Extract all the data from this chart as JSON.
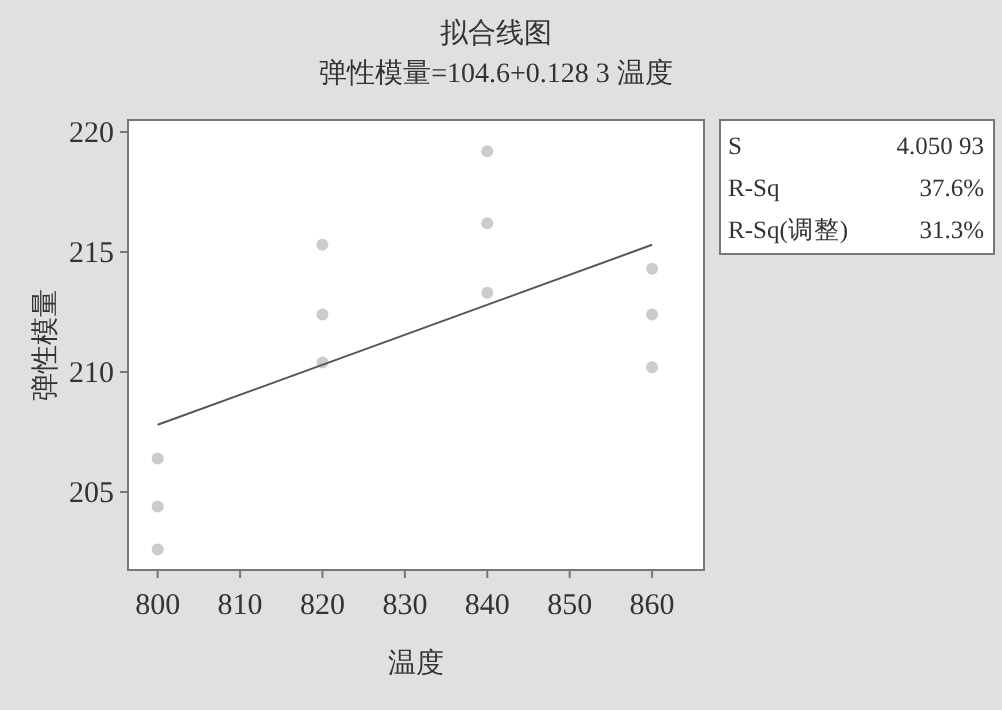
{
  "chart_data": {
    "type": "scatter",
    "title": "拟合线图",
    "subtitle": "弹性模量=104.6+0.128 3 温度",
    "xlabel": "温度",
    "ylabel": "弹性模量",
    "xlim": [
      796.4,
      866.3
    ],
    "ylim": [
      201.75,
      220.5
    ],
    "xticks": [
      800,
      810,
      820,
      830,
      840,
      850,
      860
    ],
    "yticks": [
      205,
      210,
      215,
      220
    ],
    "grid": false,
    "marker": "circle",
    "series": [
      {
        "color": "#cccccc",
        "x": [
          800,
          800,
          800,
          820,
          820,
          820,
          840,
          840,
          840,
          860,
          860,
          860
        ],
        "values": [
          206.4,
          204.4,
          202.6,
          215.3,
          212.4,
          210.4,
          219.2,
          216.2,
          213.3,
          214.3,
          212.4,
          210.2
        ]
      },
      {
        "type": "line",
        "color": "#555555",
        "marker": "none",
        "x": [
          800,
          860
        ],
        "values": [
          207.8,
          215.3
        ]
      }
    ],
    "annotations": [
      "S",
      "4.050 93",
      "R-Sq",
      "37.6%",
      "R-Sq(调整)",
      "31.3%"
    ]
  }
}
